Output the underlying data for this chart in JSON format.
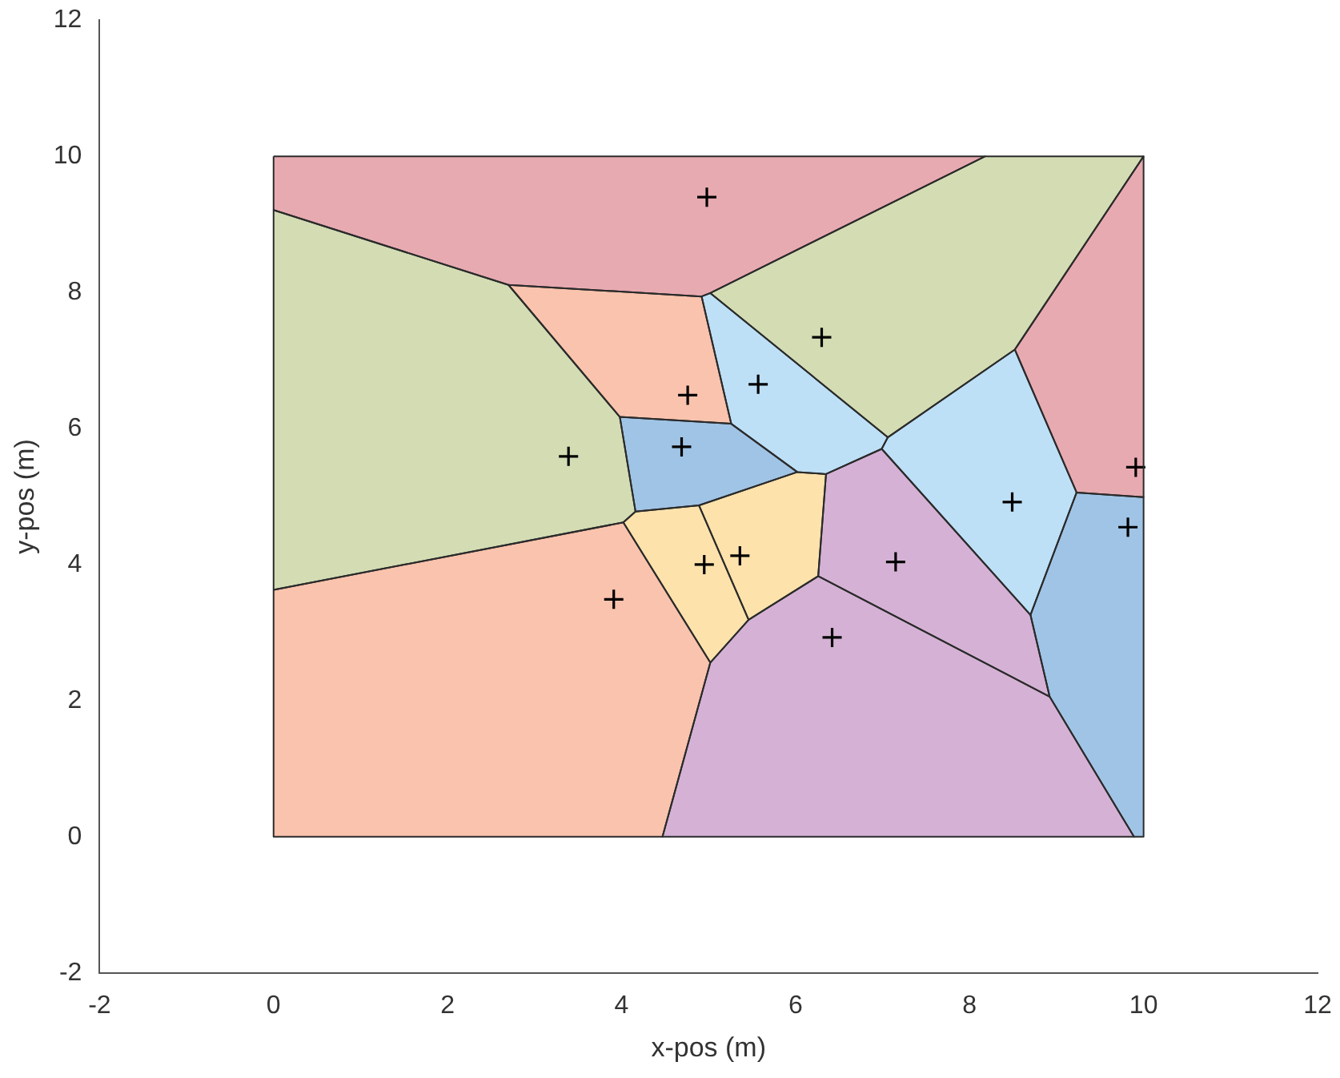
{
  "chart_data": {
    "type": "scatter",
    "xlabel": "x-pos (m)",
    "ylabel": "y-pos (m)",
    "xlim": [
      -2,
      12
    ],
    "ylim": [
      -2,
      12
    ],
    "xticks": [
      -2,
      0,
      2,
      4,
      6,
      8,
      10,
      12
    ],
    "yticks": [
      -2,
      0,
      2,
      4,
      6,
      8,
      10,
      12
    ],
    "grid": false,
    "legend": false,
    "series": [
      {
        "type": "area",
        "color": "#e8aab1",
        "x": [
          0,
          8.18,
          5.02,
          4.92,
          2.7,
          0
        ],
        "values": [
          10,
          10,
          7.99,
          7.94,
          8.11,
          9.21
        ]
      },
      {
        "type": "area",
        "color": "#d3dcb3",
        "x": [
          5.02,
          8.18,
          10,
          8.52,
          7.06
        ],
        "values": [
          7.99,
          10,
          10,
          7.16,
          5.87
        ]
      },
      {
        "type": "area",
        "color": "#e8aab1",
        "x": [
          10,
          10,
          9.23,
          8.52
        ],
        "values": [
          10,
          4.99,
          5.06,
          7.16
        ]
      },
      {
        "type": "area",
        "color": "#d3dcb3",
        "x": [
          0,
          2.7,
          3.98,
          4.16,
          4.02,
          0
        ],
        "values": [
          9.21,
          8.11,
          6.17,
          4.78,
          4.62,
          3.63
        ]
      },
      {
        "type": "area",
        "color": "#fac3ad",
        "x": [
          2.7,
          4.92,
          5.26,
          3.98
        ],
        "values": [
          8.11,
          7.94,
          6.07,
          6.17
        ]
      },
      {
        "type": "area",
        "color": "#bde0f7",
        "x": [
          4.92,
          5.02,
          7.06,
          6.99,
          6.35,
          6.02,
          5.26
        ],
        "values": [
          7.94,
          7.99,
          5.87,
          5.7,
          5.33,
          5.36,
          6.07
        ]
      },
      {
        "type": "area",
        "color": "#a0c4e5",
        "x": [
          3.98,
          5.26,
          6.02,
          4.89,
          4.16
        ],
        "values": [
          6.17,
          6.07,
          5.36,
          4.87,
          4.78
        ]
      },
      {
        "type": "area",
        "color": "#fde2ac",
        "x": [
          4.02,
          4.16,
          4.89,
          5.46,
          5.02
        ],
        "values": [
          4.62,
          4.78,
          4.87,
          3.19,
          2.56
        ]
      },
      {
        "type": "area",
        "color": "#fde2ac",
        "x": [
          4.89,
          6.02,
          6.35,
          6.26,
          5.46
        ],
        "values": [
          4.87,
          5.36,
          5.33,
          3.83,
          3.19
        ]
      },
      {
        "type": "area",
        "color": "#d5b2d5",
        "x": [
          6.35,
          6.99,
          8.7,
          8.92,
          6.26
        ],
        "values": [
          5.33,
          5.7,
          3.26,
          2.06,
          3.83
        ]
      },
      {
        "type": "area",
        "color": "#bde0f7",
        "x": [
          6.99,
          7.06,
          8.52,
          9.23,
          8.7
        ],
        "values": [
          5.7,
          5.87,
          7.16,
          5.06,
          3.26
        ]
      },
      {
        "type": "area",
        "color": "#a0c4e5",
        "x": [
          9.23,
          10,
          10,
          9.89,
          8.92,
          8.7
        ],
        "values": [
          5.06,
          4.99,
          0,
          0,
          2.06,
          3.26
        ]
      },
      {
        "type": "area",
        "color": "#d5b2d5",
        "x": [
          5.02,
          5.46,
          6.26,
          8.92,
          9.89,
          4.47
        ],
        "values": [
          2.56,
          3.19,
          3.83,
          2.06,
          0,
          0
        ]
      },
      {
        "type": "area",
        "color": "#fac3ad",
        "x": [
          0,
          4.02,
          5.02,
          4.47,
          0
        ],
        "values": [
          3.63,
          4.62,
          2.56,
          0,
          0
        ]
      },
      {
        "type": "scatter",
        "marker": "cross",
        "color": "#000000",
        "x": [
          4.98,
          6.3,
          5.57,
          4.76,
          4.69,
          3.39,
          3.91,
          4.95,
          5.36,
          7.15,
          6.42,
          8.49,
          9.82,
          9.91
        ],
        "values": [
          9.4,
          7.34,
          6.65,
          6.49,
          5.73,
          5.59,
          3.49,
          4,
          4.13,
          4.04,
          2.93,
          4.92,
          4.55,
          5.43
        ]
      }
    ]
  }
}
